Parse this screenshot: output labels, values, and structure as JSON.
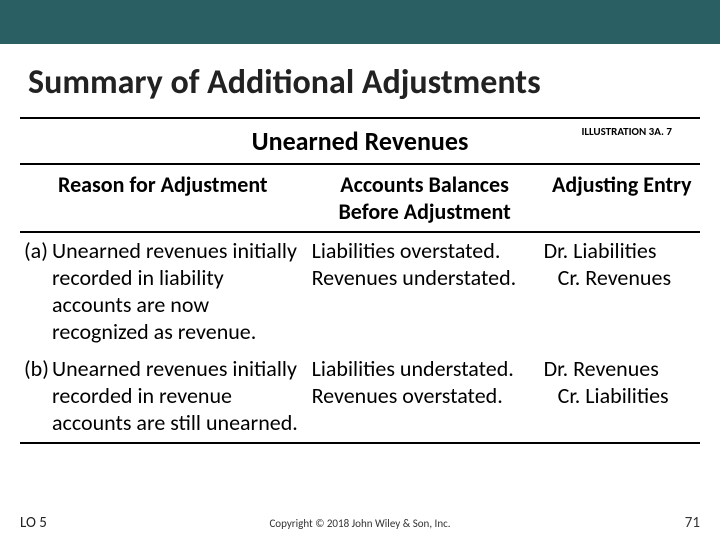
{
  "header_bar_color": "#2a6063",
  "title": "Summary of Additional Adjustments",
  "table": {
    "title": "Unearned Revenues",
    "illustration_label": "ILLUSTRATION 3A. 7",
    "columns": {
      "reason": "Reason for Adjustment",
      "balances": "Accounts Balances Before Adjustment",
      "entry": "Adjusting Entry"
    },
    "rows": [
      {
        "marker": "(a)",
        "reason": "Unearned revenues initially recorded in liability accounts are now recognized as revenue.",
        "balances": "Liabilities overstated. Revenues understated.",
        "entry_dr": "Dr. Liabilities",
        "entry_cr": "Cr. Revenues"
      },
      {
        "marker": "(b)",
        "reason": "Unearned revenues initially recorded in revenue accounts are still unearned.",
        "balances": "Liabilities understated. Revenues overstated.",
        "entry_dr": "Dr. Revenues",
        "entry_cr": "Cr. Liabilities"
      }
    ]
  },
  "footer": {
    "lo": "LO 5",
    "copyright": "Copyright © 2018 John Wiley & Son, Inc.",
    "page": "71"
  }
}
